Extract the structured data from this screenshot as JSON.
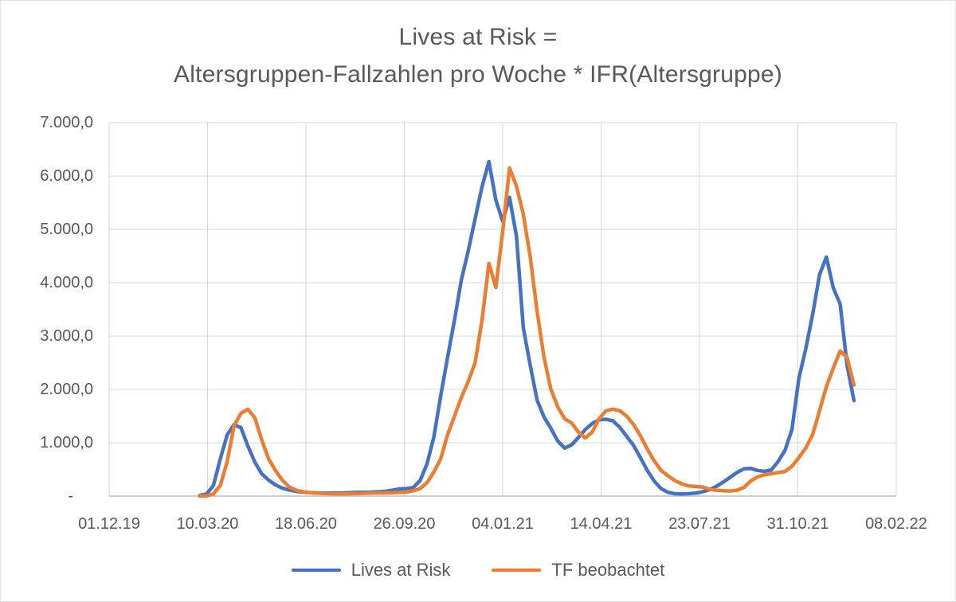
{
  "title": {
    "line1": "Lives at Risk =",
    "line2": "Altersgruppen-Fallzahlen pro Woche * IFR(Altersgruppe)"
  },
  "legend": [
    {
      "label": "Lives at Risk",
      "color": "#4472C4"
    },
    {
      "label": "TF beobachtet",
      "color": "#ED7D31"
    }
  ],
  "colors": {
    "series_blue": "#4472C4",
    "series_orange": "#ED7D31",
    "gridline": "#D9D9D9",
    "axis_line": "#BFBFBF",
    "text": "#595959",
    "background": "#FFFFFF"
  },
  "chart_data": {
    "type": "line",
    "title": "Lives at Risk = Altersgruppen-Fallzahlen pro Woche * IFR(Altersgruppe)",
    "legend_position": "bottom",
    "grid": true,
    "x_axis": {
      "start_date": "01.12.19",
      "end_date": "08.02.22",
      "tick_interval_days": 100,
      "tick_labels": [
        "01.12.19",
        "10.03.20",
        "18.06.20",
        "26.09.20",
        "04.01.21",
        "14.04.21",
        "23.07.21",
        "31.10.21",
        "08.02.22"
      ]
    },
    "y_axis": {
      "min": 0,
      "max": 7000,
      "tick_step": 1000,
      "tick_labels": [
        "-",
        "1.000,0",
        "2.000,0",
        "3.000,0",
        "4.000,0",
        "5.000,0",
        "6.000,0",
        "7.000,0"
      ]
    },
    "series": [
      {
        "name": "Lives at Risk",
        "color": "#4472C4",
        "start_date": "02.03.2020",
        "interval_days": 7,
        "values": [
          10,
          40,
          200,
          700,
          1150,
          1340,
          1280,
          940,
          640,
          420,
          300,
          210,
          150,
          115,
          90,
          75,
          65,
          60,
          55,
          55,
          58,
          60,
          65,
          70,
          72,
          75,
          80,
          90,
          110,
          135,
          140,
          160,
          290,
          600,
          1100,
          1880,
          2600,
          3300,
          4050,
          4600,
          5200,
          5800,
          6270,
          5550,
          5150,
          5600,
          4870,
          3150,
          2450,
          1800,
          1480,
          1270,
          1030,
          900,
          960,
          1100,
          1250,
          1360,
          1430,
          1440,
          1410,
          1290,
          1120,
          950,
          720,
          480,
          280,
          140,
          70,
          45,
          40,
          45,
          55,
          80,
          120,
          180,
          260,
          350,
          440,
          510,
          520,
          480,
          465,
          490,
          650,
          860,
          1250,
          2200,
          2760,
          3400,
          4150,
          4480,
          3900,
          3600,
          2450,
          1790
        ]
      },
      {
        "name": "TF beobachtet",
        "color": "#ED7D31",
        "start_date": "02.03.2020",
        "interval_days": 7,
        "values": [
          0,
          5,
          40,
          200,
          650,
          1320,
          1550,
          1630,
          1470,
          1060,
          700,
          480,
          300,
          170,
          110,
          80,
          65,
          55,
          48,
          45,
          42,
          42,
          45,
          48,
          52,
          55,
          58,
          60,
          62,
          68,
          75,
          100,
          140,
          250,
          450,
          700,
          1150,
          1500,
          1850,
          2150,
          2500,
          3300,
          4360,
          3910,
          4960,
          6150,
          5810,
          5280,
          4480,
          3460,
          2600,
          2000,
          1670,
          1450,
          1370,
          1200,
          1090,
          1200,
          1450,
          1600,
          1630,
          1600,
          1500,
          1340,
          1130,
          880,
          660,
          480,
          380,
          290,
          230,
          190,
          180,
          170,
          130,
          110,
          100,
          95,
          110,
          160,
          280,
          360,
          400,
          420,
          440,
          460,
          560,
          720,
          900,
          1150,
          1600,
          2050,
          2400,
          2720,
          2600,
          2080
        ]
      }
    ]
  }
}
